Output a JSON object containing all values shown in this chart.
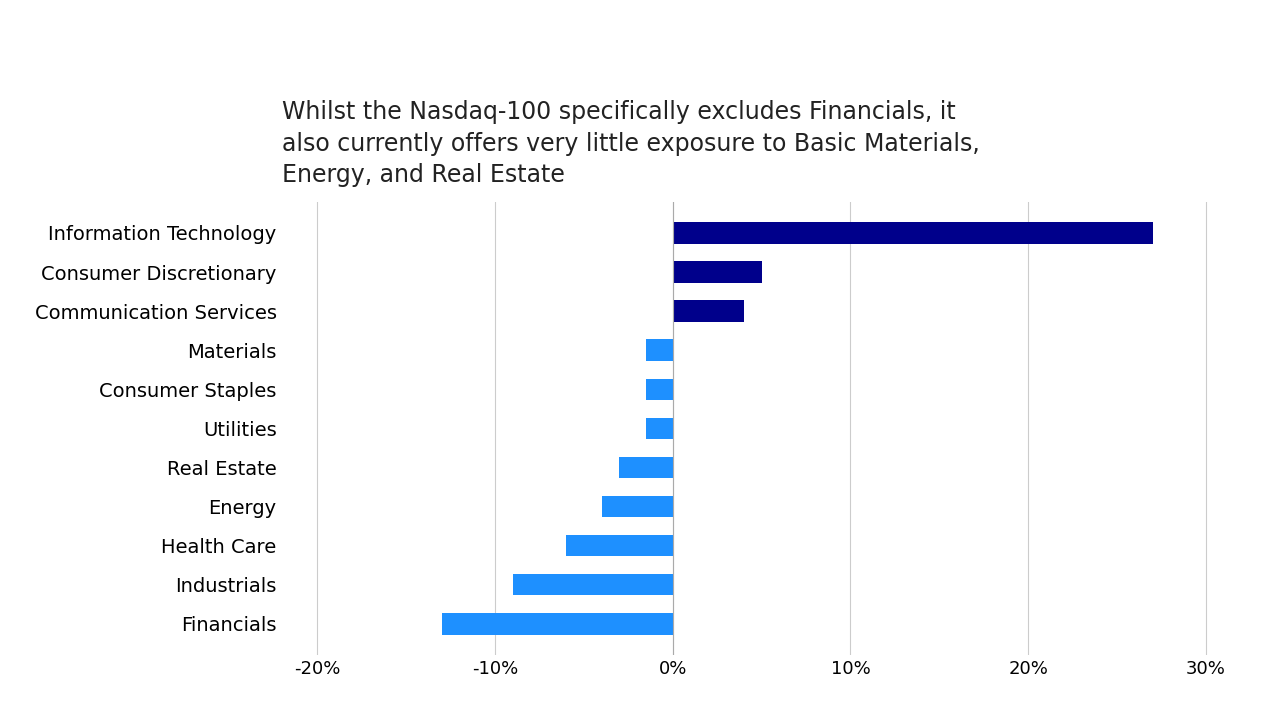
{
  "title_line1": "Whilst the Nasdaq-100 specifically excludes Financials, it",
  "title_line2": "also currently offers very little exposure to Basic Materials,",
  "title_line3": "Energy, and Real Estate",
  "categories": [
    "Financials",
    "Industrials",
    "Health Care",
    "Energy",
    "Real Estate",
    "Utilities",
    "Consumer Staples",
    "Materials",
    "Communication Services",
    "Consumer Discretionary",
    "Information Technology"
  ],
  "values": [
    -13,
    -9,
    -6,
    -4,
    -3,
    -1.5,
    -1.5,
    -1.5,
    4,
    5,
    27
  ],
  "colors": [
    "#1E90FF",
    "#1E90FF",
    "#1E90FF",
    "#1E90FF",
    "#1E90FF",
    "#1E90FF",
    "#1E90FF",
    "#1E90FF",
    "#00008B",
    "#00008B",
    "#00008B"
  ],
  "xlim": [
    -22,
    32
  ],
  "xticks": [
    -20,
    -10,
    0,
    10,
    20,
    30
  ],
  "xticklabels": [
    "-20%",
    "-10%",
    "0%",
    "10%",
    "20%",
    "30%"
  ],
  "background_color": "#FFFFFF",
  "title_fontsize": 17,
  "label_fontsize": 14,
  "tick_fontsize": 13,
  "bar_height": 0.55
}
